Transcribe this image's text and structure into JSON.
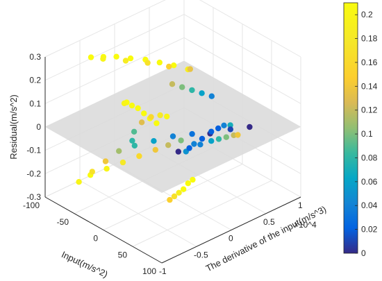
{
  "chart_data": {
    "type": "scatter",
    "projection": "3d",
    "xlabel": "Input(m/s^2)",
    "ylabel": "The derivative of the input(m/s^3)",
    "zlabel": "Residual(m/s^2)",
    "xlim": [
      -100,
      100
    ],
    "ylim": [
      -1,
      1
    ],
    "zlim": [
      -0.3,
      0.3
    ],
    "x_ticks": [
      "-100",
      "-50",
      "0",
      "50",
      "100"
    ],
    "y_ticks": [
      "-1",
      "-0.5",
      "0",
      "0.5",
      "1"
    ],
    "z_ticks": [
      "-0.3",
      "-0.2",
      "-0.1",
      "0",
      "0.1",
      "0.2",
      "0.3"
    ],
    "y_exponent": "×10^4",
    "grid": true,
    "zero_plane": {
      "z": 0,
      "color": "#d9d9d9"
    },
    "colorbar": {
      "range": [
        0,
        0.21
      ],
      "ticks": [
        "0",
        "0.02",
        "0.04",
        "0.06",
        "0.08",
        "0.1",
        "0.12",
        "0.14",
        "0.16",
        "0.18",
        "0.2"
      ],
      "colormap": "parula"
    },
    "color_variable": "|Residual|",
    "series": [
      {
        "points": [
          {
            "x": 85,
            "y": -0.95,
            "z": 0.27
          },
          {
            "x": 70,
            "y": -0.92,
            "z": 0.265
          },
          {
            "x": 55,
            "y": -0.88,
            "z": 0.26
          },
          {
            "x": 40,
            "y": -0.84,
            "z": 0.255
          },
          {
            "x": 25,
            "y": -0.8,
            "z": 0.24
          },
          {
            "x": 10,
            "y": -0.75,
            "z": 0.225
          },
          {
            "x": 0,
            "y": -0.7,
            "z": 0.2
          }
        ]
      },
      {
        "points": [
          {
            "x": 55,
            "y": -0.55,
            "z": 0.2
          },
          {
            "x": 40,
            "y": -0.52,
            "z": 0.18
          },
          {
            "x": 28,
            "y": -0.55,
            "z": 0.16
          },
          {
            "x": 18,
            "y": -0.6,
            "z": 0.13
          },
          {
            "x": 12,
            "y": -0.66,
            "z": 0.09
          }
        ]
      },
      {
        "points": [
          {
            "x": -75,
            "y": -0.55,
            "z": 0.27
          },
          {
            "x": -68,
            "y": -0.43,
            "z": 0.265
          },
          {
            "x": -60,
            "y": -0.31,
            "z": 0.26
          },
          {
            "x": -50,
            "y": -0.19,
            "z": 0.25
          },
          {
            "x": -40,
            "y": -0.06,
            "z": 0.24
          },
          {
            "x": -30,
            "y": 0.06,
            "z": 0.225
          },
          {
            "x": -20,
            "y": 0.18,
            "z": 0.21
          },
          {
            "x": -10,
            "y": 0.3,
            "z": 0.19
          }
        ]
      },
      {
        "points": [
          {
            "x": -90,
            "y": -0.25,
            "z": 0.2
          },
          {
            "x": -75,
            "y": -0.05,
            "z": 0.185
          },
          {
            "x": -60,
            "y": 0.14,
            "z": 0.17
          },
          {
            "x": -45,
            "y": 0.32,
            "z": 0.15
          },
          {
            "x": -30,
            "y": 0.5,
            "z": 0.135
          }
        ]
      },
      {
        "points": [
          {
            "x": -25,
            "y": 0.2,
            "z": 0.12
          },
          {
            "x": -20,
            "y": 0.3,
            "z": 0.1
          },
          {
            "x": -15,
            "y": 0.4,
            "z": 0.08
          },
          {
            "x": -10,
            "y": 0.5,
            "z": 0.06
          },
          {
            "x": -5,
            "y": 0.6,
            "z": 0.04
          }
        ]
      },
      {
        "points": [
          {
            "x": 70,
            "y": -0.4,
            "z": 0.05
          },
          {
            "x": 60,
            "y": -0.2,
            "z": 0.04
          },
          {
            "x": 50,
            "y": 0.0,
            "z": 0.02
          },
          {
            "x": 40,
            "y": 0.2,
            "z": 0.0
          },
          {
            "x": 30,
            "y": 0.4,
            "z": -0.02
          },
          {
            "x": 22,
            "y": 0.55,
            "z": -0.04
          },
          {
            "x": 15,
            "y": 0.7,
            "z": -0.07
          }
        ]
      },
      {
        "points": [
          {
            "x": 45,
            "y": -0.3,
            "z": 0.0
          },
          {
            "x": 40,
            "y": -0.1,
            "z": -0.02
          },
          {
            "x": 35,
            "y": 0.1,
            "z": -0.04
          },
          {
            "x": 30,
            "y": 0.3,
            "z": -0.06
          },
          {
            "x": 25,
            "y": 0.45,
            "z": -0.08
          },
          {
            "x": 20,
            "y": 0.6,
            "z": -0.1
          },
          {
            "x": 15,
            "y": 0.75,
            "z": -0.12
          },
          {
            "x": 10,
            "y": 0.85,
            "z": -0.14
          }
        ]
      },
      {
        "points": [
          {
            "x": 60,
            "y": -0.55,
            "z": -0.15
          },
          {
            "x": 50,
            "y": -0.4,
            "z": -0.17
          },
          {
            "x": 40,
            "y": -0.25,
            "z": -0.19
          },
          {
            "x": 30,
            "y": -0.1,
            "z": -0.21
          },
          {
            "x": 20,
            "y": 0.05,
            "z": -0.22
          },
          {
            "x": 10,
            "y": 0.2,
            "z": -0.24
          }
        ]
      },
      {
        "points": [
          {
            "x": -30,
            "y": -0.3,
            "z": -0.08
          },
          {
            "x": -15,
            "y": -0.15,
            "z": -0.06
          },
          {
            "x": 0,
            "y": 0.0,
            "z": -0.04
          },
          {
            "x": 15,
            "y": 0.15,
            "z": -0.03
          },
          {
            "x": 30,
            "y": 0.3,
            "z": -0.02
          },
          {
            "x": 45,
            "y": 0.45,
            "z": -0.01
          },
          {
            "x": 60,
            "y": 0.6,
            "z": 0.0
          }
        ]
      },
      {
        "points": [
          {
            "x": -70,
            "y": -0.6,
            "z": -0.22
          },
          {
            "x": -60,
            "y": -0.45,
            "z": -0.2
          },
          {
            "x": -50,
            "y": -0.3,
            "z": -0.18
          },
          {
            "x": -40,
            "y": -0.15,
            "z": -0.16
          },
          {
            "x": -30,
            "y": 0.0,
            "z": -0.14
          },
          {
            "x": -20,
            "y": 0.1,
            "z": -0.12
          },
          {
            "x": -10,
            "y": 0.2,
            "z": -0.1
          }
        ]
      },
      {
        "points": [
          {
            "x": -60,
            "y": -0.85,
            "z": -0.2
          },
          {
            "x": -55,
            "y": -0.7,
            "z": -0.17
          },
          {
            "x": -50,
            "y": -0.55,
            "z": -0.14
          },
          {
            "x": -45,
            "y": -0.4,
            "z": -0.11
          },
          {
            "x": -40,
            "y": -0.25,
            "z": -0.08
          }
        ]
      }
    ]
  }
}
